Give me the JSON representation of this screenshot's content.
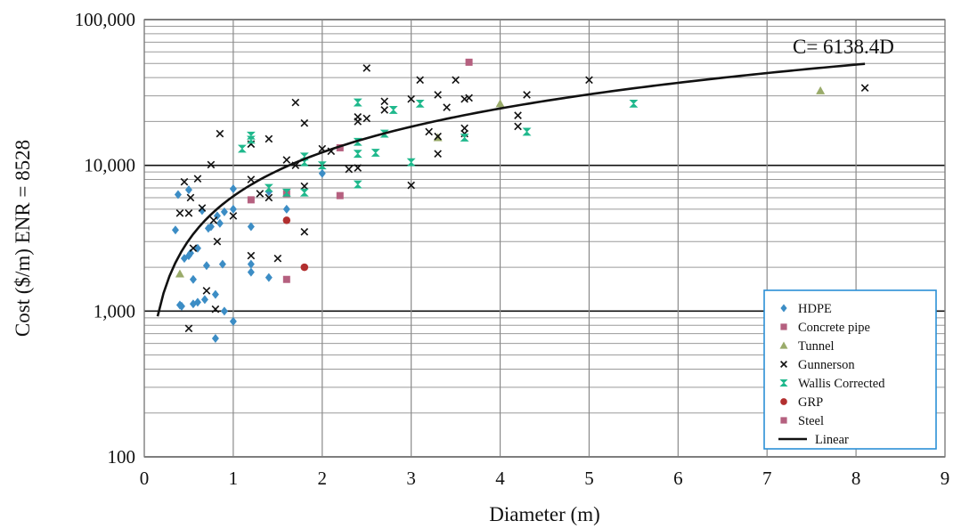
{
  "chart_data": {
    "type": "scatter",
    "xlabel": "Diameter (m)",
    "ylabel": "Cost ($/m) ENR = 8528",
    "xlim": [
      0,
      9
    ],
    "ylim": [
      100,
      100000
    ],
    "yscale": "log",
    "grid": true,
    "legend_position": "bottom-right",
    "x_ticks": [
      "0",
      "1",
      "2",
      "3",
      "4",
      "5",
      "6",
      "7",
      "8",
      "9"
    ],
    "y_ticks": [
      "100",
      "1,000",
      "10,000",
      "100,000"
    ],
    "annotation": "C= 6138.4D",
    "series": [
      {
        "name": "HDPE",
        "marker": "diamond",
        "color": "#3c8dc5",
        "points": [
          [
            0.35,
            3600
          ],
          [
            0.38,
            6300
          ],
          [
            0.4,
            1100
          ],
          [
            0.42,
            1080
          ],
          [
            0.45,
            2300
          ],
          [
            0.5,
            2400
          ],
          [
            0.5,
            6800
          ],
          [
            0.52,
            2500
          ],
          [
            0.55,
            1650
          ],
          [
            0.55,
            1120
          ],
          [
            0.6,
            1150
          ],
          [
            0.6,
            2700
          ],
          [
            0.65,
            4900
          ],
          [
            0.68,
            1200
          ],
          [
            0.7,
            2050
          ],
          [
            0.72,
            3700
          ],
          [
            0.75,
            3800
          ],
          [
            0.8,
            650
          ],
          [
            0.8,
            1300
          ],
          [
            0.82,
            4500
          ],
          [
            0.85,
            4000
          ],
          [
            0.88,
            2100
          ],
          [
            0.9,
            4800
          ],
          [
            0.9,
            1000
          ],
          [
            1.0,
            850
          ],
          [
            1.0,
            6900
          ],
          [
            1.0,
            5000
          ],
          [
            1.2,
            1850
          ],
          [
            1.2,
            3800
          ],
          [
            1.2,
            2100
          ],
          [
            1.4,
            1700
          ],
          [
            1.4,
            6600
          ],
          [
            1.6,
            5000
          ],
          [
            2.0,
            8800
          ]
        ]
      },
      {
        "name": "Concrete pipe",
        "marker": "square",
        "color": "#b5607f",
        "points": [
          [
            1.2,
            5800
          ],
          [
            1.6,
            6400
          ],
          [
            2.2,
            13200
          ],
          [
            3.65,
            51000
          ]
        ]
      },
      {
        "name": "Tunnel",
        "marker": "triangle",
        "color": "#9aab6a",
        "points": [
          [
            0.4,
            1800
          ],
          [
            3.3,
            15500
          ],
          [
            4.0,
            26500
          ],
          [
            7.6,
            32500
          ]
        ]
      },
      {
        "name": "Gunnerson",
        "marker": "x",
        "color": "#111111",
        "points": [
          [
            0.4,
            4700
          ],
          [
            0.45,
            7700
          ],
          [
            0.5,
            4700
          ],
          [
            0.5,
            760
          ],
          [
            0.52,
            6000
          ],
          [
            0.55,
            2700
          ],
          [
            0.6,
            8100
          ],
          [
            0.65,
            5100
          ],
          [
            0.7,
            1380
          ],
          [
            0.75,
            10100
          ],
          [
            0.78,
            4200
          ],
          [
            0.8,
            1030
          ],
          [
            0.82,
            3000
          ],
          [
            0.85,
            16500
          ],
          [
            1.0,
            4500
          ],
          [
            1.2,
            14000
          ],
          [
            1.2,
            8000
          ],
          [
            1.2,
            2400
          ],
          [
            1.3,
            6400
          ],
          [
            1.4,
            6000
          ],
          [
            1.4,
            15200
          ],
          [
            1.5,
            2300
          ],
          [
            1.6,
            10900
          ],
          [
            1.7,
            10000
          ],
          [
            1.7,
            27000
          ],
          [
            1.8,
            19500
          ],
          [
            1.8,
            7200
          ],
          [
            1.8,
            3500
          ],
          [
            2.0,
            13000
          ],
          [
            2.1,
            12500
          ],
          [
            2.3,
            9400
          ],
          [
            2.4,
            9600
          ],
          [
            2.4,
            20000
          ],
          [
            2.4,
            21500
          ],
          [
            2.5,
            21000
          ],
          [
            2.5,
            46500
          ],
          [
            2.7,
            27500
          ],
          [
            2.7,
            24000
          ],
          [
            3.0,
            28500
          ],
          [
            3.0,
            7300
          ],
          [
            3.1,
            38500
          ],
          [
            3.2,
            17000
          ],
          [
            3.3,
            12000
          ],
          [
            3.3,
            30500
          ],
          [
            3.3,
            15800
          ],
          [
            3.4,
            25000
          ],
          [
            3.5,
            38500
          ],
          [
            3.6,
            18000
          ],
          [
            3.6,
            28500
          ],
          [
            3.65,
            29000
          ],
          [
            3.6,
            16500
          ],
          [
            4.2,
            22000
          ],
          [
            4.2,
            18500
          ],
          [
            4.3,
            30500
          ],
          [
            5.0,
            38500
          ],
          [
            8.1,
            34000
          ]
        ]
      },
      {
        "name": "Wallis Corrected",
        "marker": "hourglass",
        "color": "#1fb88c",
        "points": [
          [
            1.1,
            13000
          ],
          [
            1.2,
            16000
          ],
          [
            1.2,
            15000
          ],
          [
            1.4,
            7000
          ],
          [
            1.6,
            6500
          ],
          [
            1.8,
            11500
          ],
          [
            1.8,
            10500
          ],
          [
            1.8,
            6500
          ],
          [
            2.0,
            10000
          ],
          [
            2.4,
            14500
          ],
          [
            2.4,
            12000
          ],
          [
            2.4,
            7400
          ],
          [
            2.4,
            27000
          ],
          [
            2.6,
            12200
          ],
          [
            2.7,
            16500
          ],
          [
            2.8,
            24000
          ],
          [
            3.0,
            10500
          ],
          [
            3.1,
            26500
          ],
          [
            3.6,
            15500
          ],
          [
            4.3,
            17000
          ],
          [
            5.5,
            26500
          ]
        ]
      },
      {
        "name": "GRP",
        "marker": "circle",
        "color": "#b22f2f",
        "points": [
          [
            1.6,
            4200
          ],
          [
            1.8,
            2000
          ]
        ]
      },
      {
        "name": "Steel",
        "marker": "square",
        "color": "#b5607f",
        "points": [
          [
            1.6,
            1650
          ],
          [
            2.2,
            6200
          ]
        ]
      }
    ],
    "fit_line": {
      "name": "Linear",
      "equation": "C= 6138.4D",
      "slope": 6138.4,
      "color": "#111111",
      "x_range": [
        0.15,
        8.1
      ]
    }
  }
}
